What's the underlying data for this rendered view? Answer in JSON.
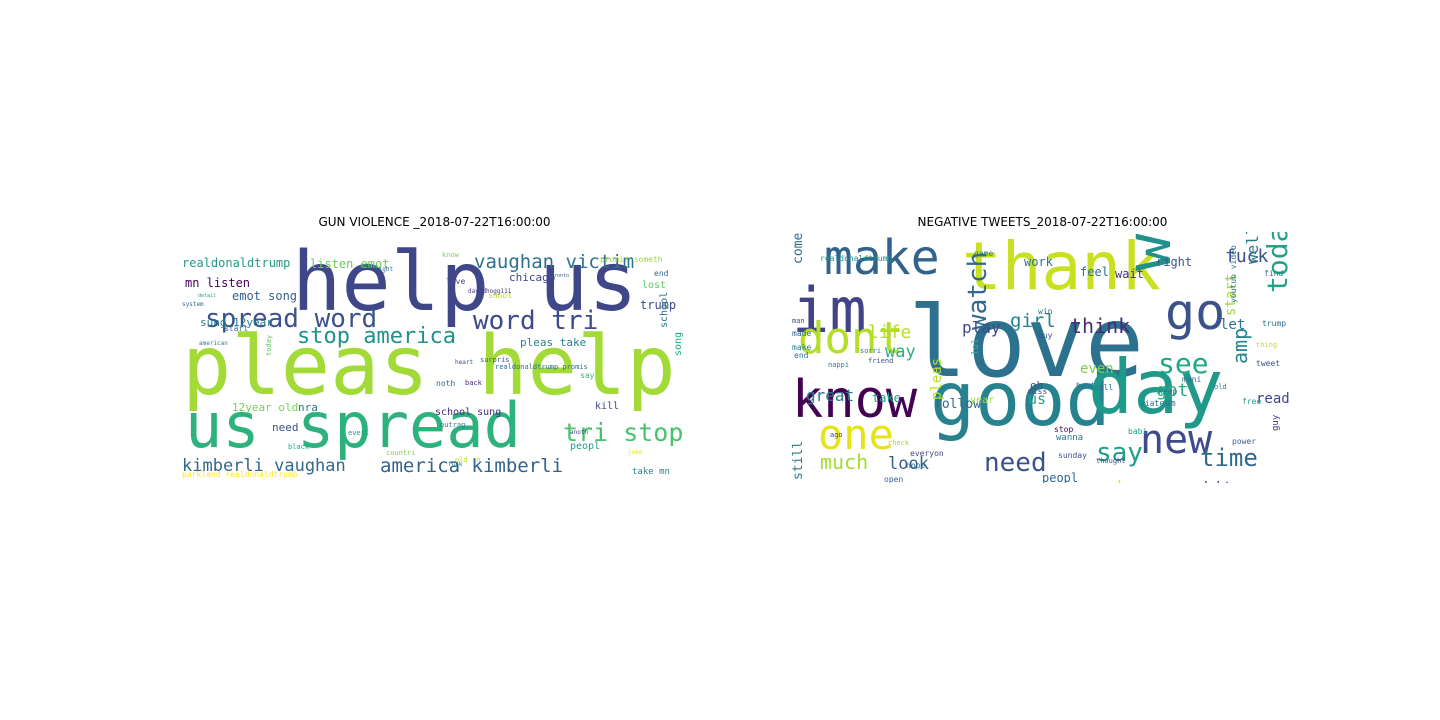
{
  "figure": {
    "panels": [
      {
        "title": "GUN VIOLENCE _2018-07-22T16:00:00",
        "words": [
          {
            "text": "help us",
            "color": "#3f4788"
          },
          {
            "text": "pleas help",
            "color": "#a2da37"
          },
          {
            "text": "us spread",
            "color": "#2db27d"
          },
          {
            "text": "spread word",
            "color": "#3b528b"
          },
          {
            "text": "word tri",
            "color": "#3e4a89"
          },
          {
            "text": "stop america",
            "color": "#21918c"
          },
          {
            "text": "vaughan victim",
            "color": "#2c728e"
          },
          {
            "text": "tri stop",
            "color": "#4ac16d"
          },
          {
            "text": "kimberli vaughan",
            "color": "#31688e"
          },
          {
            "text": "america kimberli",
            "color": "#33638d"
          },
          {
            "text": "realdonaldtrump",
            "color": "#1f9a8a"
          },
          {
            "text": "mn listen",
            "color": "#440154"
          },
          {
            "text": "emot song",
            "color": "#355f8d"
          },
          {
            "text": "sung 12year",
            "color": "#2a788e"
          },
          {
            "text": "listen emot",
            "color": "#6ccd5a"
          },
          {
            "text": "chicago",
            "color": "#404387"
          },
          {
            "text": "trump",
            "color": "#3e4989"
          },
          {
            "text": "pleas take",
            "color": "#26828e"
          },
          {
            "text": "12year old",
            "color": "#75d054"
          },
          {
            "text": "nra",
            "color": "#2a788e"
          },
          {
            "text": "need",
            "color": "#3b528b"
          },
          {
            "text": "school sung",
            "color": "#472d7b"
          },
          {
            "text": "kill",
            "color": "#424086"
          },
          {
            "text": "lost",
            "color": "#5ec962"
          },
          {
            "text": "peopl",
            "color": "#1f9e89"
          },
          {
            "text": "song",
            "color": "#22a884"
          },
          {
            "text": "school",
            "color": "#2c728e"
          },
          {
            "text": "take mn",
            "color": "#25858e"
          },
          {
            "text": "say",
            "color": "#35b779"
          },
          {
            "text": "noth",
            "color": "#31688e"
          },
          {
            "text": "shoot",
            "color": "#bddf26"
          },
          {
            "text": "end",
            "color": "#31688e"
          },
          {
            "text": "live",
            "color": "#3e4989"
          },
          {
            "text": "promis someth",
            "color": "#9fda3a"
          },
          {
            "text": "realdonaldtrump promis",
            "color": "#2e6e8e"
          },
          {
            "text": "davidhogg111",
            "color": "#443983"
          },
          {
            "text": "surpris",
            "color": "#3b528b"
          },
          {
            "text": "know",
            "color": "#7ad151"
          },
          {
            "text": "start",
            "color": "#2c728e"
          },
          {
            "text": "parkland realdonaldtrump",
            "color": "#fde725"
          },
          {
            "text": "black",
            "color": "#22a884"
          },
          {
            "text": "countri",
            "color": "#84d44b"
          },
          {
            "text": "outrag",
            "color": "#2a788e"
          },
          {
            "text": "back",
            "color": "#482878"
          },
          {
            "text": "everi",
            "color": "#1f9a8a"
          },
          {
            "text": "old rn",
            "color": "#c2df23"
          },
          {
            "text": "anoth",
            "color": "#3f4788"
          },
          {
            "text": "fuck",
            "color": "#287c8e"
          },
          {
            "text": "today",
            "color": "#5ec962"
          },
          {
            "text": "heart",
            "color": "#3b528b"
          },
          {
            "text": "system",
            "color": "#30698e"
          },
          {
            "text": "right",
            "color": "#2d708e"
          },
          {
            "text": "detail",
            "color": "#1f9e89"
          },
          {
            "text": "joke",
            "color": "#e5e419"
          },
          {
            "text": "victim",
            "color": "#35b779"
          },
          {
            "text": "american",
            "color": "#277f8e"
          },
          {
            "text": "toronto",
            "color": "#355f8d"
          }
        ]
      },
      {
        "title": "NEGATIVE TWEETS_2018-07-22T16:00:00",
        "words": [
          {
            "text": "love",
            "color": "#2c728e"
          },
          {
            "text": "good",
            "color": "#26828e"
          },
          {
            "text": "day",
            "color": "#1f9a8a"
          },
          {
            "text": "thank",
            "color": "#c8e020"
          },
          {
            "text": "make",
            "color": "#33638d"
          },
          {
            "text": "im",
            "color": "#414487"
          },
          {
            "text": "want",
            "color": "#21918c"
          },
          {
            "text": "go",
            "color": "#3b528b"
          },
          {
            "text": "know",
            "color": "#440154"
          },
          {
            "text": "dont",
            "color": "#b5de2b"
          },
          {
            "text": "one",
            "color": "#e5e419"
          },
          {
            "text": "watch",
            "color": "#31688e"
          },
          {
            "text": "new",
            "color": "#3e4a89"
          },
          {
            "text": "today",
            "color": "#20a386"
          },
          {
            "text": "see",
            "color": "#22a884"
          },
          {
            "text": "say",
            "color": "#1f9e89"
          },
          {
            "text": "need",
            "color": "#3b528b"
          },
          {
            "text": "time",
            "color": "#30698e"
          },
          {
            "text": "much",
            "color": "#a5db36"
          },
          {
            "text": "amp",
            "color": "#23888e"
          },
          {
            "text": "life",
            "color": "#b5de2b"
          },
          {
            "text": "way",
            "color": "#29af7f"
          },
          {
            "text": "girl",
            "color": "#25858e"
          },
          {
            "text": "think",
            "color": "#482878"
          },
          {
            "text": "fuck",
            "color": "#3b528b"
          },
          {
            "text": "well",
            "color": "#2a788e"
          },
          {
            "text": "great",
            "color": "#2a788e"
          },
          {
            "text": "look",
            "color": "#355f8d"
          },
          {
            "text": "got",
            "color": "#27ad81"
          },
          {
            "text": "shit",
            "color": "#3e4989"
          },
          {
            "text": "don",
            "color": "#e5e419"
          },
          {
            "text": "play",
            "color": "#3e4989"
          },
          {
            "text": "even",
            "color": "#7ad151"
          },
          {
            "text": "follow",
            "color": "#31688e"
          },
          {
            "text": "take",
            "color": "#1f9e89"
          },
          {
            "text": "us",
            "color": "#22a884"
          },
          {
            "text": "year",
            "color": "#a2da37"
          },
          {
            "text": "work",
            "color": "#2c728e"
          },
          {
            "text": "feel",
            "color": "#2d708e"
          },
          {
            "text": "wait",
            "color": "#46337e"
          },
          {
            "text": "right",
            "color": "#3b528b"
          },
          {
            "text": "let",
            "color": "#2c728e"
          },
          {
            "text": "start",
            "color": "#9fda3a"
          },
          {
            "text": "read",
            "color": "#3f4788"
          },
          {
            "text": "come",
            "color": "#30698e"
          },
          {
            "text": "still",
            "color": "#2a788e"
          },
          {
            "text": "anoth",
            "color": "#3b528b"
          },
          {
            "text": "peopl",
            "color": "#31688e"
          },
          {
            "text": "pleas",
            "color": "#b5de2b"
          },
          {
            "text": "realdonaldtrump",
            "color": "#21918c"
          },
          {
            "text": "trump",
            "color": "#2e6e8e"
          },
          {
            "text": "oh",
            "color": "#3e4989"
          },
          {
            "text": "best",
            "color": "#287c8e"
          },
          {
            "text": "mani",
            "color": "#2c728e"
          },
          {
            "text": "free",
            "color": "#1f9a8a"
          },
          {
            "text": "youtub video",
            "color": "#2d708e"
          },
          {
            "text": "thing",
            "color": "#b5de2b"
          },
          {
            "text": "tweet",
            "color": "#3b528b"
          },
          {
            "text": "guy",
            "color": "#443983"
          },
          {
            "text": "find",
            "color": "#2a788e"
          },
          {
            "text": "lol",
            "color": "#35b779"
          },
          {
            "text": "game",
            "color": "#2c728e"
          },
          {
            "text": "everyon",
            "color": "#3e4989"
          },
          {
            "text": "hope",
            "color": "#30698e"
          },
          {
            "text": "open",
            "color": "#355f8d"
          },
          {
            "text": "sorri",
            "color": "#2a788e"
          },
          {
            "text": "friend",
            "color": "#3b528b"
          },
          {
            "text": "nappi",
            "color": "#287c8e"
          },
          {
            "text": "via",
            "color": "#31688e"
          },
          {
            "text": "call",
            "color": "#2c728e"
          },
          {
            "text": "miss",
            "color": "#3e4989"
          },
          {
            "text": "keep",
            "color": "#2a788e"
          },
          {
            "text": "sunday",
            "color": "#3b528b"
          },
          {
            "text": "stop",
            "color": "#440154"
          },
          {
            "text": "babi",
            "color": "#1f9e89"
          },
          {
            "text": "team",
            "color": "#2c728e"
          },
          {
            "text": "make",
            "color": "#2a788e"
          },
          {
            "text": "made",
            "color": "#30698e"
          },
          {
            "text": "man",
            "color": "#3b528b"
          },
          {
            "text": "end",
            "color": "#2c728e"
          },
          {
            "text": "ago",
            "color": "#3e4989"
          },
          {
            "text": "old",
            "color": "#2a788e"
          },
          {
            "text": "power",
            "color": "#355f8d"
          },
          {
            "text": "buy",
            "color": "#3b528b"
          },
          {
            "text": "win",
            "color": "#2c728e"
          },
          {
            "text": "wanna",
            "color": "#2a788e"
          },
          {
            "text": "check",
            "color": "#9fda3a"
          },
          {
            "text": "thought",
            "color": "#3e4989"
          },
          {
            "text": "ask",
            "color": "#2c728e"
          }
        ]
      }
    ]
  }
}
